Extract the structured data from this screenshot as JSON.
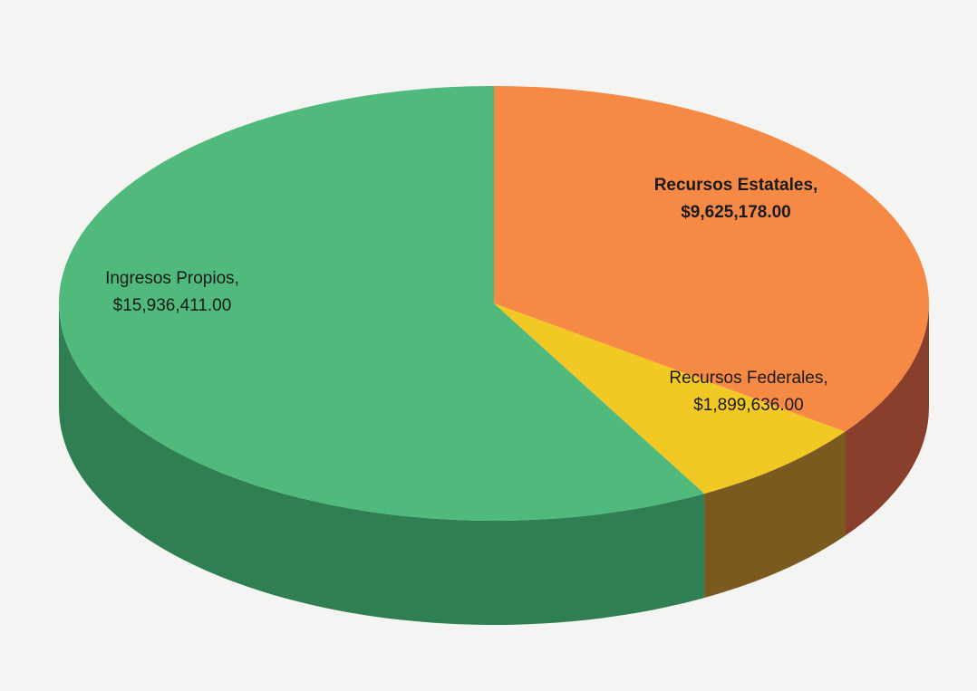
{
  "chart_data": {
    "type": "pie",
    "three_d": true,
    "categories": [
      "Recursos Estatales,",
      "Recursos Federales,",
      "Ingresos Propios,"
    ],
    "values": [
      9625178,
      1899636,
      15936411
    ],
    "value_labels": [
      "$9,625,178.00",
      "$1,899,636.00",
      "$15,936,411.00"
    ],
    "colors": [
      "#f68a44",
      "#f2c824",
      "#4fba7c"
    ],
    "side_colors": [
      "#8a3f2c",
      "#7a5a1e",
      "#2f7f52"
    ]
  }
}
